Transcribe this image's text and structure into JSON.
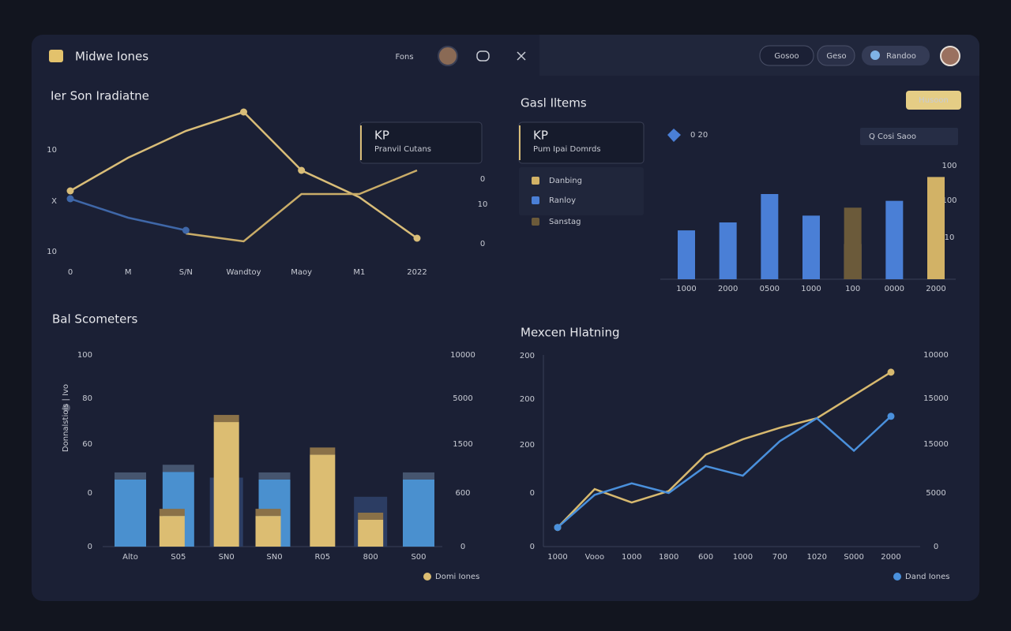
{
  "header": {
    "brand": "Midwe Iones",
    "nav": "Fons",
    "buttons": [
      "Gosoo",
      "Geso",
      "Randoo"
    ]
  },
  "charts": [
    {
      "type": "line",
      "title": "Ier Son Iradiatne",
      "categories": [
        "0",
        "M",
        "S/N",
        "Wandtoy",
        "Maoy",
        "M1",
        "2022"
      ],
      "left_labels": [
        "10",
        "X",
        "10"
      ],
      "right_labels": [
        "0",
        "10",
        "0"
      ],
      "ylim": [
        0,
        100
      ],
      "kpi": {
        "title": "KP",
        "subtitle": "Pranvil Cutans"
      },
      "series": [
        {
          "color": "#d9bd78",
          "values": [
            44,
            65,
            82,
            94,
            57,
            40,
            14
          ]
        },
        {
          "color": "#c9ac68",
          "values": [
            null,
            null,
            17,
            12,
            42,
            42,
            57
          ]
        },
        {
          "color": "#3f67a8",
          "values": [
            39,
            27,
            19,
            null,
            null,
            null,
            null
          ]
        }
      ]
    },
    {
      "type": "bar",
      "title": "Gasl Iltems",
      "categories": [
        "1000",
        "2000",
        "0500",
        "1000",
        "100",
        "0000",
        "2000"
      ],
      "right_labels": [
        "100",
        "100",
        "10"
      ],
      "ylim": [
        0,
        100
      ],
      "kpi": {
        "title": "KP",
        "subtitle": "Pum Ipai Domrds"
      },
      "controls": {
        "badge": "0 20",
        "dropdown": "Q  Cosi  Saoo",
        "button": "Husoon"
      },
      "series": [
        {
          "name": "Danbing",
          "color": "#d2b266",
          "values": [
            null,
            null,
            null,
            null,
            31,
            null,
            90
          ]
        },
        {
          "name": "Ranloy",
          "color": "#4a7fd6",
          "values": [
            43,
            50,
            75,
            56,
            null,
            69,
            null
          ]
        },
        {
          "name": "Sanstag",
          "color": "#6b5a3a",
          "values": [
            null,
            null,
            null,
            null,
            63,
            null,
            null
          ]
        }
      ]
    },
    {
      "type": "bar",
      "title": "Bal Scometers",
      "y_title": "Donnalstiois | Ivo",
      "categories": [
        "Alto",
        "S05",
        "SN0",
        "SN0",
        "R05",
        "800",
        "S00"
      ],
      "left_labels": [
        "100",
        "80",
        "60",
        "0",
        "0"
      ],
      "right_labels": [
        "10000",
        "5000",
        "1500",
        "600",
        "0"
      ],
      "ylim": [
        0,
        100
      ],
      "series": [
        {
          "color": "#2c3d63",
          "values": [
            null,
            null,
            36,
            null,
            null,
            26,
            null
          ]
        },
        {
          "color": "#4a90cf",
          "values": [
            35,
            39,
            null,
            35,
            null,
            null,
            35
          ]
        },
        {
          "name": "Domi Iones",
          "color": "#dcbd72",
          "values": [
            null,
            16,
            65,
            16,
            48,
            14,
            null
          ]
        }
      ]
    },
    {
      "type": "line",
      "title": "Mexcen Hlatning",
      "categories": [
        "1000",
        "Vooo",
        "1000",
        "1800",
        "600",
        "1000",
        "700",
        "1020",
        "S000",
        "2000"
      ],
      "left_labels": [
        "200",
        "200",
        "200",
        "0",
        "0"
      ],
      "right_labels": [
        "10000",
        "15000",
        "15000",
        "5000",
        "0"
      ],
      "ylim": [
        0,
        100
      ],
      "series": [
        {
          "color": "#d7b96f",
          "values": [
            10,
            30,
            23,
            29,
            48,
            56,
            62,
            67,
            79,
            91
          ]
        },
        {
          "name": "Dand Iones",
          "color": "#4a90dc",
          "values": [
            10,
            27,
            33,
            28,
            42,
            37,
            55,
            67,
            50,
            68
          ]
        }
      ]
    }
  ]
}
